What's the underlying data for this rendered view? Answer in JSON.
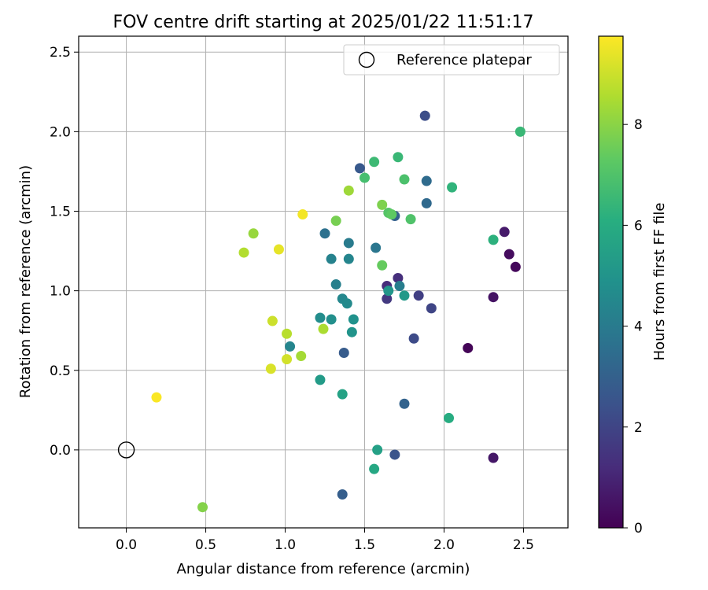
{
  "chart_data": {
    "type": "scatter",
    "title": "FOV centre drift starting at 2025/01/22 11:51:17",
    "xlabel": "Angular distance from reference (arcmin)",
    "ylabel": "Rotation from reference (arcmin)",
    "xlim": [
      -0.3,
      2.78
    ],
    "ylim": [
      -0.49,
      2.6
    ],
    "xticks": [
      0.0,
      0.5,
      1.0,
      1.5,
      2.0,
      2.5
    ],
    "xtick_labels": [
      "0.0",
      "0.5",
      "1.0",
      "1.5",
      "2.0",
      "2.5"
    ],
    "yticks": [
      0.0,
      0.5,
      1.0,
      1.5,
      2.0,
      2.5
    ],
    "ytick_labels": [
      "0.0",
      "0.5",
      "1.0",
      "1.5",
      "2.0",
      "2.5"
    ],
    "grid": true,
    "legend": {
      "position": "top-right",
      "entries": [
        "Reference platepar"
      ]
    },
    "reference_point": {
      "x": 0.0,
      "y": 0.0,
      "label": "Reference platepar",
      "marker": "open-circle"
    },
    "colorbar": {
      "label": "Hours from first FF file",
      "colormap": "viridis",
      "range": [
        0,
        9.75
      ],
      "ticks": [
        0,
        2,
        4,
        6,
        8
      ],
      "tick_labels": [
        "0",
        "2",
        "4",
        "6",
        "8"
      ]
    },
    "points": [
      {
        "x": 2.15,
        "y": 0.64,
        "c": 0.1
      },
      {
        "x": 2.45,
        "y": 1.15,
        "c": 0.2
      },
      {
        "x": 2.41,
        "y": 1.23,
        "c": 0.3
      },
      {
        "x": 2.31,
        "y": 0.96,
        "c": 0.5
      },
      {
        "x": 2.31,
        "y": -0.05,
        "c": 0.6
      },
      {
        "x": 2.38,
        "y": 1.37,
        "c": 0.7
      },
      {
        "x": 1.64,
        "y": 1.03,
        "c": 1.2
      },
      {
        "x": 1.71,
        "y": 1.08,
        "c": 1.3
      },
      {
        "x": 1.64,
        "y": 0.95,
        "c": 1.6
      },
      {
        "x": 1.84,
        "y": 0.97,
        "c": 1.8
      },
      {
        "x": 1.92,
        "y": 0.89,
        "c": 2.0
      },
      {
        "x": 1.81,
        "y": 0.7,
        "c": 2.2
      },
      {
        "x": 1.88,
        "y": 2.1,
        "c": 2.3
      },
      {
        "x": 1.69,
        "y": -0.03,
        "c": 2.5
      },
      {
        "x": 1.47,
        "y": 1.77,
        "c": 2.7
      },
      {
        "x": 1.37,
        "y": 0.61,
        "c": 2.8
      },
      {
        "x": 1.36,
        "y": -0.28,
        "c": 2.9
      },
      {
        "x": 1.69,
        "y": 1.47,
        "c": 3.0
      },
      {
        "x": 1.75,
        "y": 0.29,
        "c": 3.1
      },
      {
        "x": 1.89,
        "y": 1.55,
        "c": 3.3
      },
      {
        "x": 1.89,
        "y": 1.69,
        "c": 3.4
      },
      {
        "x": 1.25,
        "y": 1.36,
        "c": 3.6
      },
      {
        "x": 1.57,
        "y": 1.27,
        "c": 3.8
      },
      {
        "x": 1.4,
        "y": 1.3,
        "c": 4.0
      },
      {
        "x": 1.72,
        "y": 1.03,
        "c": 4.1
      },
      {
        "x": 1.32,
        "y": 1.04,
        "c": 4.2
      },
      {
        "x": 1.29,
        "y": 1.2,
        "c": 4.3
      },
      {
        "x": 1.4,
        "y": 1.2,
        "c": 4.4
      },
      {
        "x": 1.03,
        "y": 0.65,
        "c": 4.4
      },
      {
        "x": 1.36,
        "y": 0.95,
        "c": 4.5
      },
      {
        "x": 1.39,
        "y": 0.92,
        "c": 4.6
      },
      {
        "x": 1.22,
        "y": 0.83,
        "c": 4.7
      },
      {
        "x": 1.29,
        "y": 0.82,
        "c": 4.8
      },
      {
        "x": 1.43,
        "y": 0.82,
        "c": 4.9
      },
      {
        "x": 1.42,
        "y": 0.74,
        "c": 5.0
      },
      {
        "x": 1.65,
        "y": 1.0,
        "c": 5.1
      },
      {
        "x": 1.75,
        "y": 0.97,
        "c": 5.2
      },
      {
        "x": 1.22,
        "y": 0.44,
        "c": 5.3
      },
      {
        "x": 1.58,
        "y": 0.0,
        "c": 5.5
      },
      {
        "x": 1.36,
        "y": 0.35,
        "c": 5.6
      },
      {
        "x": 1.56,
        "y": -0.12,
        "c": 5.8
      },
      {
        "x": 2.03,
        "y": 0.2,
        "c": 6.0
      },
      {
        "x": 2.31,
        "y": 1.32,
        "c": 6.2
      },
      {
        "x": 2.05,
        "y": 1.65,
        "c": 6.3
      },
      {
        "x": 2.48,
        "y": 2.0,
        "c": 6.5
      },
      {
        "x": 1.71,
        "y": 1.84,
        "c": 6.5
      },
      {
        "x": 1.56,
        "y": 1.81,
        "c": 6.6
      },
      {
        "x": 1.5,
        "y": 1.71,
        "c": 6.8
      },
      {
        "x": 1.75,
        "y": 1.7,
        "c": 6.9
      },
      {
        "x": 1.79,
        "y": 1.45,
        "c": 7.0
      },
      {
        "x": 1.65,
        "y": 1.49,
        "c": 7.1
      },
      {
        "x": 1.67,
        "y": 1.48,
        "c": 7.3
      },
      {
        "x": 1.61,
        "y": 1.16,
        "c": 7.4
      },
      {
        "x": 1.32,
        "y": 1.44,
        "c": 7.7
      },
      {
        "x": 1.61,
        "y": 1.54,
        "c": 7.8
      },
      {
        "x": 0.48,
        "y": -0.36,
        "c": 7.9
      },
      {
        "x": 0.8,
        "y": 1.36,
        "c": 8.2
      },
      {
        "x": 1.4,
        "y": 1.63,
        "c": 8.3
      },
      {
        "x": 1.1,
        "y": 0.59,
        "c": 8.4
      },
      {
        "x": 1.24,
        "y": 0.76,
        "c": 8.5
      },
      {
        "x": 0.74,
        "y": 1.24,
        "c": 8.6
      },
      {
        "x": 1.01,
        "y": 0.73,
        "c": 8.7
      },
      {
        "x": 0.92,
        "y": 0.81,
        "c": 9.0
      },
      {
        "x": 1.01,
        "y": 0.57,
        "c": 9.1
      },
      {
        "x": 0.91,
        "y": 0.51,
        "c": 9.2
      },
      {
        "x": 0.96,
        "y": 1.26,
        "c": 9.4
      },
      {
        "x": 1.11,
        "y": 1.48,
        "c": 9.6
      },
      {
        "x": 0.19,
        "y": 0.33,
        "c": 9.7
      }
    ]
  }
}
